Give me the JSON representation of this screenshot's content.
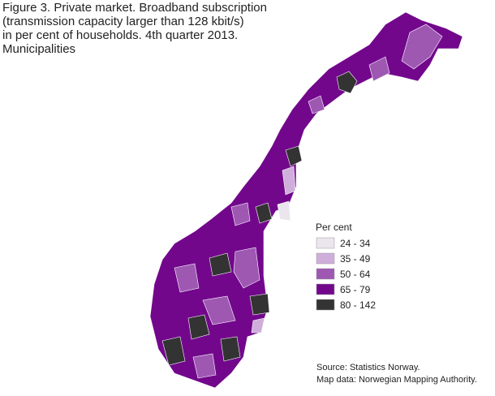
{
  "title_lines": [
    "Figure 3. Private market. Broadband subscription",
    "(transmission capacity larger than 128 kbit/s)",
    "in per cent of households. 4th quarter 2013.",
    "Municipalities"
  ],
  "legend": {
    "title": "Per cent",
    "items": [
      {
        "label": "24 - 34",
        "color": "#ebe5ee"
      },
      {
        "label": "35 - 49",
        "color": "#d0aedb"
      },
      {
        "label": "50 - 64",
        "color": "#9e58b2"
      },
      {
        "label": "65 - 79",
        "color": "#72078c"
      },
      {
        "label": "80 - 142",
        "color": "#333333"
      }
    ]
  },
  "source_lines": [
    "Source: Statistics Norway.",
    "Map data: Norwegian Mapping Authority."
  ]
}
